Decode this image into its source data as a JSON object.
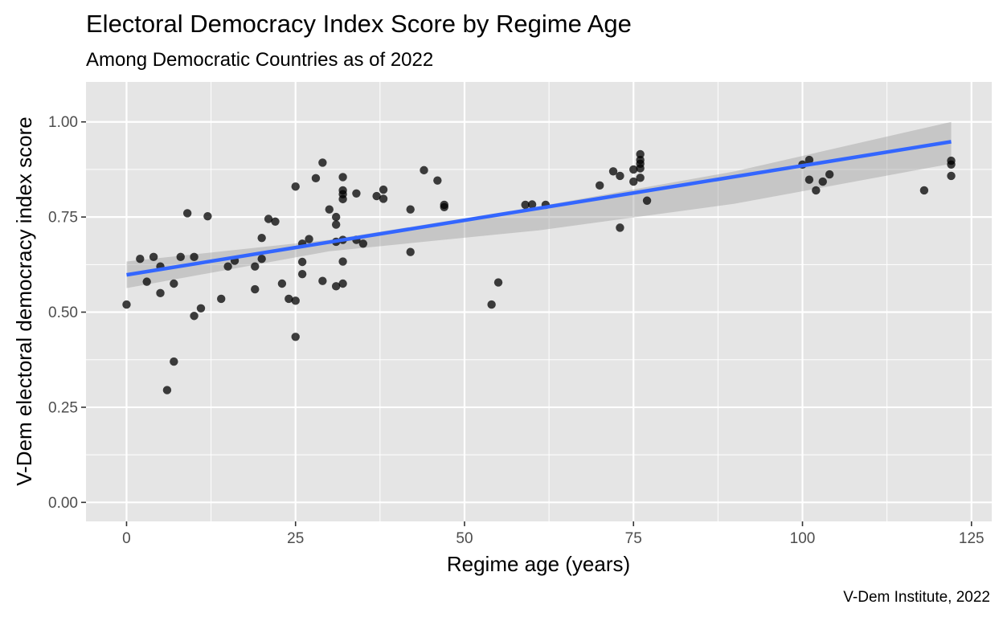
{
  "chart_data": {
    "type": "scatter",
    "title": "Electoral Democracy Index Score by Regime Age",
    "subtitle": "Among Democratic Countries as of 2022",
    "xlabel": "Regime age (years)",
    "ylabel": "V-Dem electoral democracy index score",
    "caption": "V-Dem Institute, 2022",
    "xlim": [
      -6,
      128
    ],
    "ylim": [
      -0.05,
      1.105
    ],
    "x_ticks": [
      0,
      25,
      50,
      75,
      100,
      125
    ],
    "x_tick_labels": [
      "0",
      "25",
      "50",
      "75",
      "100",
      "125"
    ],
    "y_ticks": [
      0,
      0.25,
      0.5,
      0.75,
      1.0
    ],
    "y_tick_labels": [
      "0.00",
      "0.25",
      "0.50",
      "0.75",
      "1.00"
    ],
    "grid": true,
    "legend": "none",
    "colors": {
      "panel_background": "#e5e5e5",
      "grid": "#ffffff",
      "points": "#000000",
      "trend_line": "#3366ff",
      "confidence_band": "#999999"
    },
    "points": [
      {
        "x": 0,
        "y": 0.52
      },
      {
        "x": 2,
        "y": 0.64
      },
      {
        "x": 3,
        "y": 0.58
      },
      {
        "x": 4,
        "y": 0.645
      },
      {
        "x": 5,
        "y": 0.62
      },
      {
        "x": 5,
        "y": 0.55
      },
      {
        "x": 6,
        "y": 0.295
      },
      {
        "x": 7,
        "y": 0.37
      },
      {
        "x": 7,
        "y": 0.575
      },
      {
        "x": 8,
        "y": 0.645
      },
      {
        "x": 9,
        "y": 0.76
      },
      {
        "x": 10,
        "y": 0.645
      },
      {
        "x": 10,
        "y": 0.49
      },
      {
        "x": 11,
        "y": 0.51
      },
      {
        "x": 12,
        "y": 0.752
      },
      {
        "x": 14,
        "y": 0.535
      },
      {
        "x": 15,
        "y": 0.62
      },
      {
        "x": 16,
        "y": 0.635
      },
      {
        "x": 19,
        "y": 0.62
      },
      {
        "x": 19,
        "y": 0.56
      },
      {
        "x": 20,
        "y": 0.695
      },
      {
        "x": 20,
        "y": 0.64
      },
      {
        "x": 21,
        "y": 0.745
      },
      {
        "x": 22,
        "y": 0.738
      },
      {
        "x": 23,
        "y": 0.575
      },
      {
        "x": 24,
        "y": 0.535
      },
      {
        "x": 25,
        "y": 0.83
      },
      {
        "x": 25,
        "y": 0.53
      },
      {
        "x": 25,
        "y": 0.435
      },
      {
        "x": 26,
        "y": 0.68
      },
      {
        "x": 26,
        "y": 0.632
      },
      {
        "x": 26,
        "y": 0.6
      },
      {
        "x": 27,
        "y": 0.692
      },
      {
        "x": 28,
        "y": 0.852
      },
      {
        "x": 29,
        "y": 0.893
      },
      {
        "x": 29,
        "y": 0.582
      },
      {
        "x": 30,
        "y": 0.77
      },
      {
        "x": 31,
        "y": 0.75
      },
      {
        "x": 31,
        "y": 0.73
      },
      {
        "x": 31,
        "y": 0.685
      },
      {
        "x": 31,
        "y": 0.568
      },
      {
        "x": 32,
        "y": 0.855
      },
      {
        "x": 32,
        "y": 0.82
      },
      {
        "x": 32,
        "y": 0.81
      },
      {
        "x": 32,
        "y": 0.797
      },
      {
        "x": 32,
        "y": 0.69
      },
      {
        "x": 32,
        "y": 0.633
      },
      {
        "x": 32,
        "y": 0.575
      },
      {
        "x": 34,
        "y": 0.812
      },
      {
        "x": 34,
        "y": 0.69
      },
      {
        "x": 35,
        "y": 0.68
      },
      {
        "x": 37,
        "y": 0.805
      },
      {
        "x": 38,
        "y": 0.822
      },
      {
        "x": 38,
        "y": 0.798
      },
      {
        "x": 42,
        "y": 0.77
      },
      {
        "x": 42,
        "y": 0.658
      },
      {
        "x": 44,
        "y": 0.873
      },
      {
        "x": 46,
        "y": 0.846
      },
      {
        "x": 47,
        "y": 0.782
      },
      {
        "x": 47,
        "y": 0.776
      },
      {
        "x": 54,
        "y": 0.52
      },
      {
        "x": 55,
        "y": 0.578
      },
      {
        "x": 59,
        "y": 0.782
      },
      {
        "x": 60,
        "y": 0.783
      },
      {
        "x": 62,
        "y": 0.782
      },
      {
        "x": 70,
        "y": 0.833
      },
      {
        "x": 72,
        "y": 0.87
      },
      {
        "x": 73,
        "y": 0.858
      },
      {
        "x": 73,
        "y": 0.722
      },
      {
        "x": 75,
        "y": 0.875
      },
      {
        "x": 75,
        "y": 0.843
      },
      {
        "x": 76,
        "y": 0.915
      },
      {
        "x": 76,
        "y": 0.9
      },
      {
        "x": 76,
        "y": 0.89
      },
      {
        "x": 76,
        "y": 0.878
      },
      {
        "x": 76,
        "y": 0.853
      },
      {
        "x": 77,
        "y": 0.793
      },
      {
        "x": 100,
        "y": 0.888
      },
      {
        "x": 101,
        "y": 0.9
      },
      {
        "x": 101,
        "y": 0.848
      },
      {
        "x": 102,
        "y": 0.82
      },
      {
        "x": 103,
        "y": 0.843
      },
      {
        "x": 104,
        "y": 0.862
      },
      {
        "x": 118,
        "y": 0.82
      },
      {
        "x": 122,
        "y": 0.898
      },
      {
        "x": 122,
        "y": 0.888
      },
      {
        "x": 122,
        "y": 0.858
      }
    ],
    "trend_line": {
      "method": "linear",
      "x": [
        0,
        122
      ],
      "y": [
        0.598,
        0.948
      ]
    },
    "confidence_band": {
      "x": [
        0,
        30,
        61,
        90,
        122
      ],
      "lower": [
        0.563,
        0.66,
        0.715,
        0.785,
        0.89
      ],
      "upper": [
        0.633,
        0.69,
        0.778,
        0.87,
        1.0
      ]
    }
  }
}
